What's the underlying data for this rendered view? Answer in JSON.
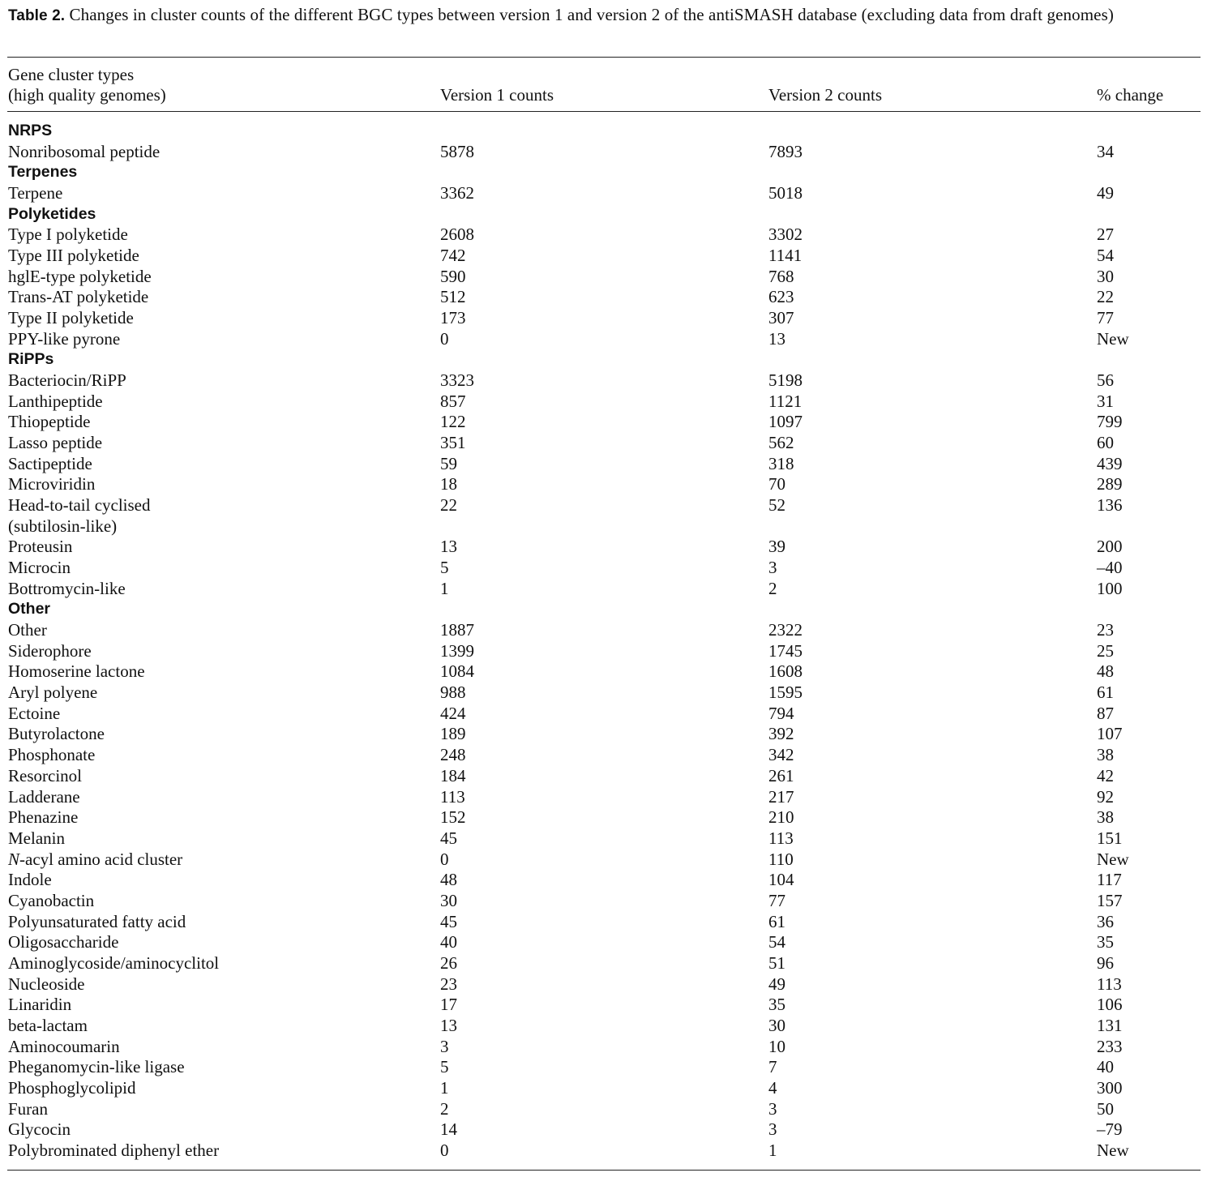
{
  "caption": {
    "label": "Table 2.",
    "text": "Changes in cluster counts of the different BGC types between version 1 and version 2 of the antiSMASH database (excluding data from draft genomes)"
  },
  "columns": {
    "type_line1": "Gene cluster types",
    "type_line2": "(high quality genomes)",
    "v1": "Version 1 counts",
    "v2": "Version 2 counts",
    "change": "% change"
  },
  "rows": [
    {
      "section": "NRPS"
    },
    {
      "name": "Nonribosomal peptide",
      "v1": "5878",
      "v2": "7893",
      "change": "34"
    },
    {
      "section": "Terpenes"
    },
    {
      "name": "Terpene",
      "v1": "3362",
      "v2": "5018",
      "change": "49"
    },
    {
      "section": "Polyketides"
    },
    {
      "name": "Type I polyketide",
      "v1": "2608",
      "v2": "3302",
      "change": "27"
    },
    {
      "name": "Type III polyketide",
      "v1": "742",
      "v2": "1141",
      "change": "54"
    },
    {
      "name": "hglE-type polyketide",
      "v1": "590",
      "v2": "768",
      "change": "30"
    },
    {
      "name": "Trans-AT polyketide",
      "v1": "512",
      "v2": "623",
      "change": "22"
    },
    {
      "name": "Type II polyketide",
      "v1": "173",
      "v2": "307",
      "change": "77"
    },
    {
      "name": "PPY-like pyrone",
      "v1": "0",
      "v2": "13",
      "change": "New"
    },
    {
      "section": "RiPPs"
    },
    {
      "name": "Bacteriocin/RiPP",
      "v1": "3323",
      "v2": "5198",
      "change": "56"
    },
    {
      "name": "Lanthipeptide",
      "v1": "857",
      "v2": "1121",
      "change": "31"
    },
    {
      "name": "Thiopeptide",
      "v1": "122",
      "v2": "1097",
      "change": "799"
    },
    {
      "name": "Lasso peptide",
      "v1": "351",
      "v2": "562",
      "change": "60"
    },
    {
      "name": "Sactipeptide",
      "v1": "59",
      "v2": "318",
      "change": "439"
    },
    {
      "name": "Microviridin",
      "v1": "18",
      "v2": "70",
      "change": "289"
    },
    {
      "name": "Head-to-tail cyclised",
      "v1": "22",
      "v2": "52",
      "change": "136"
    },
    {
      "name": "(subtilosin-like)",
      "v1": "",
      "v2": "",
      "change": ""
    },
    {
      "name": "Proteusin",
      "v1": "13",
      "v2": "39",
      "change": "200"
    },
    {
      "name": "Microcin",
      "v1": "5",
      "v2": "3",
      "change": "–40"
    },
    {
      "name": "Bottromycin-like",
      "v1": "1",
      "v2": "2",
      "change": "100"
    },
    {
      "section": "Other"
    },
    {
      "name": "Other",
      "v1": "1887",
      "v2": "2322",
      "change": "23"
    },
    {
      "name": "Siderophore",
      "v1": "1399",
      "v2": "1745",
      "change": "25"
    },
    {
      "name": "Homoserine lactone",
      "v1": "1084",
      "v2": "1608",
      "change": "48"
    },
    {
      "name": "Aryl polyene",
      "v1": "988",
      "v2": "1595",
      "change": "61"
    },
    {
      "name": "Ectoine",
      "v1": "424",
      "v2": "794",
      "change": "87"
    },
    {
      "name": "Butyrolactone",
      "v1": "189",
      "v2": "392",
      "change": "107"
    },
    {
      "name": "Phosphonate",
      "v1": "248",
      "v2": "342",
      "change": "38"
    },
    {
      "name": "Resorcinol",
      "v1": "184",
      "v2": "261",
      "change": "42"
    },
    {
      "name": "Ladderane",
      "v1": "113",
      "v2": "217",
      "change": "92"
    },
    {
      "name": "Phenazine",
      "v1": "152",
      "v2": "210",
      "change": "38"
    },
    {
      "name": "Melanin",
      "v1": "45",
      "v2": "113",
      "change": "151"
    },
    {
      "name_italic": "N",
      "name": "-acyl amino acid cluster",
      "v1": "0",
      "v2": "110",
      "change": "New"
    },
    {
      "name": "Indole",
      "v1": "48",
      "v2": "104",
      "change": "117"
    },
    {
      "name": "Cyanobactin",
      "v1": "30",
      "v2": "77",
      "change": "157"
    },
    {
      "name": "Polyunsaturated fatty acid",
      "v1": "45",
      "v2": "61",
      "change": "36"
    },
    {
      "name": "Oligosaccharide",
      "v1": "40",
      "v2": "54",
      "change": "35"
    },
    {
      "name": "Aminoglycoside/aminocyclitol",
      "v1": "26",
      "v2": "51",
      "change": "96"
    },
    {
      "name": "Nucleoside",
      "v1": "23",
      "v2": "49",
      "change": "113"
    },
    {
      "name": "Linaridin",
      "v1": "17",
      "v2": "35",
      "change": "106"
    },
    {
      "name": "beta-lactam",
      "v1": "13",
      "v2": "30",
      "change": "131"
    },
    {
      "name": "Aminocoumarin",
      "v1": "3",
      "v2": "10",
      "change": "233"
    },
    {
      "name": "Pheganomycin-like ligase",
      "v1": "5",
      "v2": "7",
      "change": "40"
    },
    {
      "name": "Phosphoglycolipid",
      "v1": "1",
      "v2": "4",
      "change": "300"
    },
    {
      "name": "Furan",
      "v1": "2",
      "v2": "3",
      "change": "50"
    },
    {
      "name": "Glycocin",
      "v1": "14",
      "v2": "3",
      "change": "–79"
    },
    {
      "name": "Polybrominated diphenyl ether",
      "v1": "0",
      "v2": "1",
      "change": "New"
    }
  ]
}
